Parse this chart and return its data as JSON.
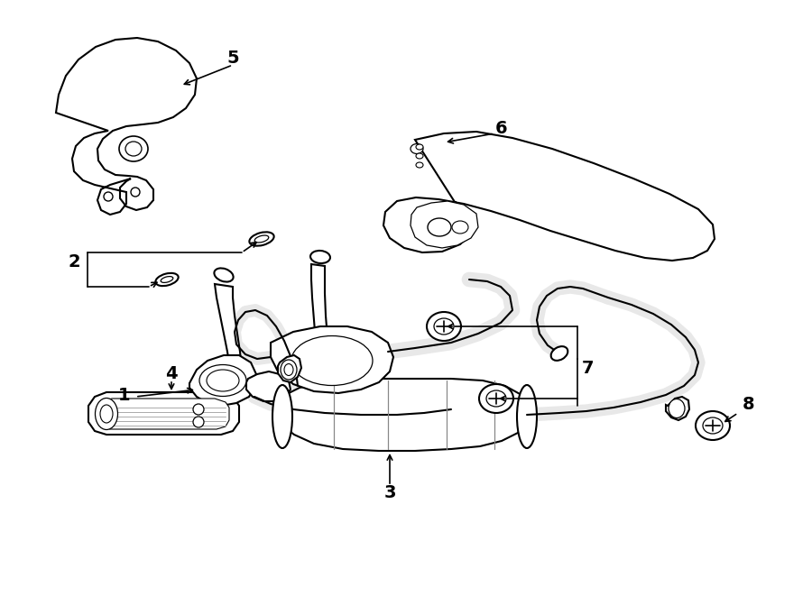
{
  "background_color": "#ffffff",
  "line_color": "#000000",
  "line_width": 1.5,
  "figsize": [
    9.0,
    6.61
  ],
  "dpi": 100
}
